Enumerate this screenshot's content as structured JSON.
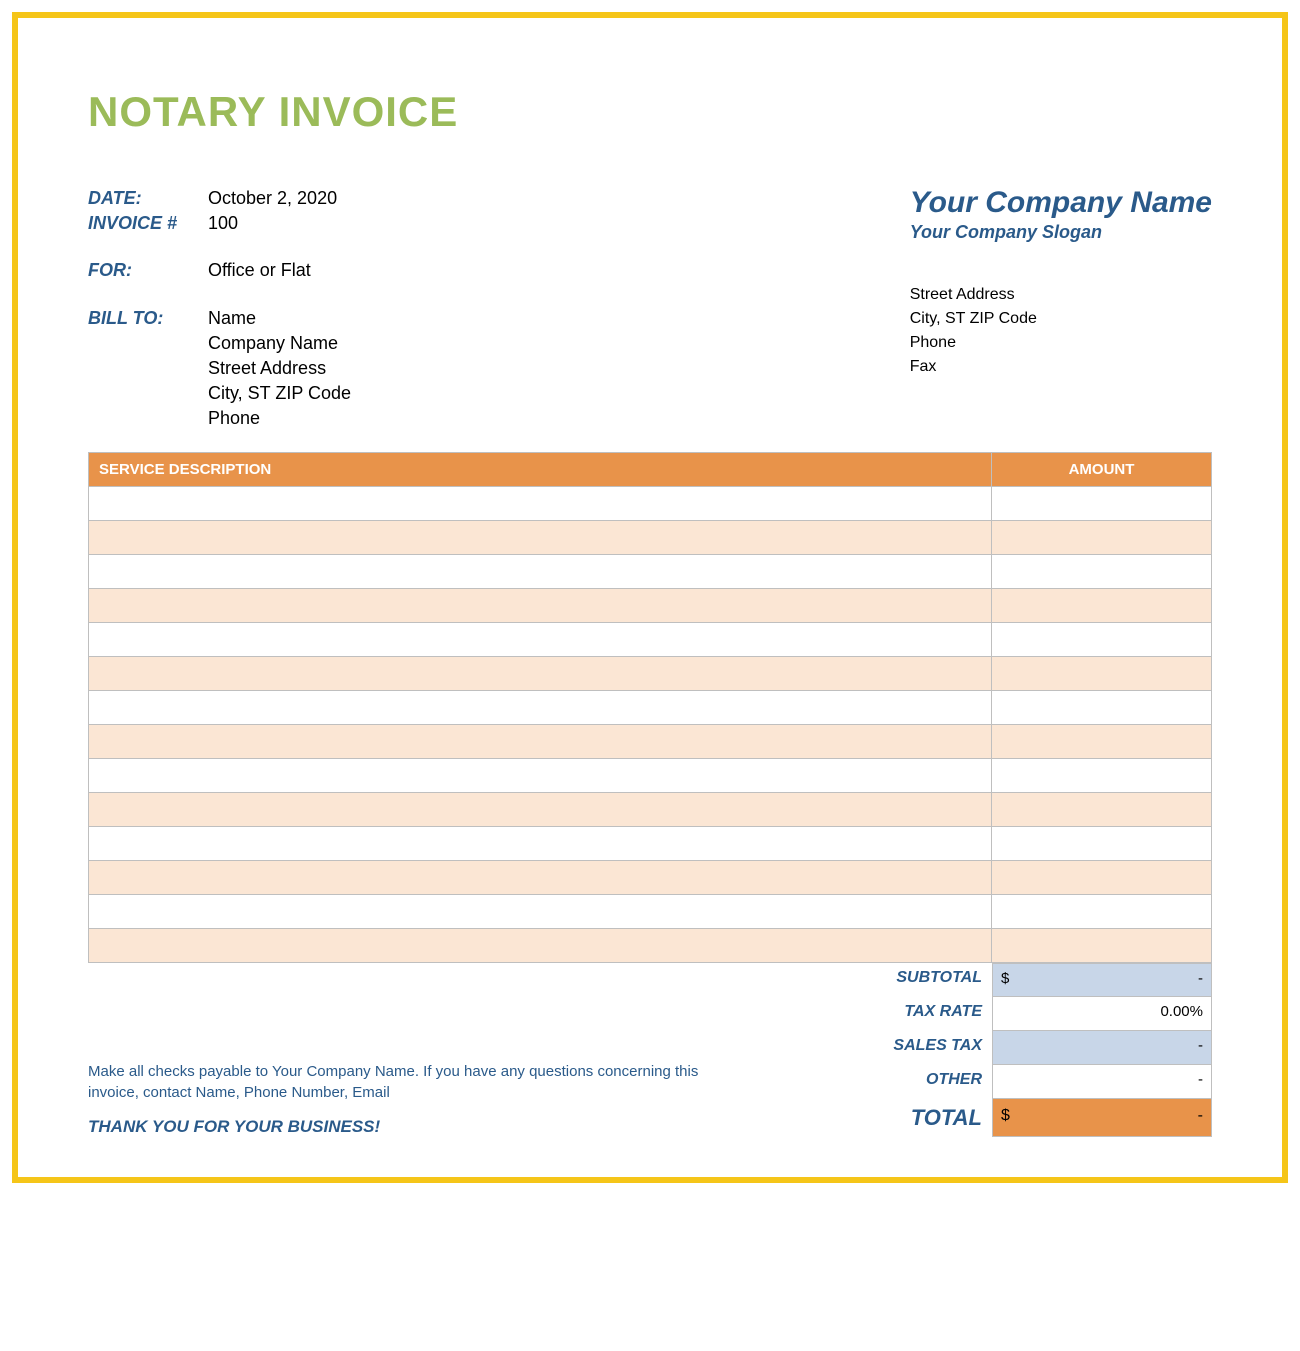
{
  "colors": {
    "frame_border": "#f5c518",
    "title": "#9bbb59",
    "accent_blue": "#2a5a8a",
    "header_orange": "#e8934a",
    "row_alt": "#fbe6d4",
    "totals_blue": "#c8d6e8",
    "grid": "#bfbfbf",
    "text": "#000000",
    "white": "#ffffff"
  },
  "title": "NOTARY INVOICE",
  "meta": {
    "date_label": "DATE:",
    "date_value": "October 2, 2020",
    "invoice_label": "INVOICE #",
    "invoice_value": "100",
    "for_label": "FOR:",
    "for_value": "Office or Flat",
    "billto_label": "BILL TO:",
    "billto_lines": [
      "Name",
      "Company Name",
      "Street Address",
      "City, ST  ZIP Code",
      "Phone"
    ]
  },
  "company": {
    "name": "Your Company Name",
    "slogan": "Your Company Slogan",
    "address_lines": [
      "Street Address",
      "City, ST  ZIP Code",
      "Phone",
      "Fax"
    ]
  },
  "table": {
    "headers": {
      "desc": "SERVICE DESCRIPTION",
      "amount": "AMOUNT"
    },
    "row_count": 14,
    "rows": [
      {
        "desc": "",
        "amount": ""
      },
      {
        "desc": "",
        "amount": ""
      },
      {
        "desc": "",
        "amount": ""
      },
      {
        "desc": "",
        "amount": ""
      },
      {
        "desc": "",
        "amount": ""
      },
      {
        "desc": "",
        "amount": ""
      },
      {
        "desc": "",
        "amount": ""
      },
      {
        "desc": "",
        "amount": ""
      },
      {
        "desc": "",
        "amount": ""
      },
      {
        "desc": "",
        "amount": ""
      },
      {
        "desc": "",
        "amount": ""
      },
      {
        "desc": "",
        "amount": ""
      },
      {
        "desc": "",
        "amount": ""
      },
      {
        "desc": "",
        "amount": ""
      }
    ]
  },
  "totals": {
    "subtotal_label": "SUBTOTAL",
    "subtotal_currency": "$",
    "subtotal_value": "-",
    "taxrate_label": "TAX RATE",
    "taxrate_value": "0.00%",
    "salestax_label": "SALES TAX",
    "salestax_value": "-",
    "other_label": "OTHER",
    "other_value": "-",
    "total_label": "TOTAL",
    "total_currency": "$",
    "total_value": "-"
  },
  "footer": {
    "payable": "Make all checks payable to Your Company Name. If you have any questions concerning this invoice, contact Name, Phone Number, Email",
    "thanks": "THANK YOU FOR YOUR BUSINESS!"
  }
}
